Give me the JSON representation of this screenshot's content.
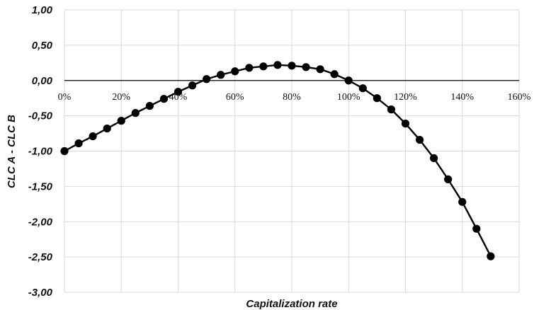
{
  "chart_data": {
    "type": "line",
    "xlabel": "Capitalization rate",
    "ylabel": "CLC A - CLC B",
    "xlim": [
      0,
      160
    ],
    "ylim": [
      -3,
      1
    ],
    "x_tick_values": [
      0,
      20,
      40,
      60,
      80,
      100,
      120,
      140,
      160
    ],
    "x_tick_labels": [
      "0%",
      "20%",
      "40%",
      "60%",
      "80%",
      "100%",
      "120%",
      "140%",
      "160%"
    ],
    "y_tick_values": [
      1,
      0.5,
      0,
      -0.5,
      -1,
      -1.5,
      -2,
      -2.5,
      -3
    ],
    "y_tick_labels": [
      "1,00",
      "0,50",
      "0,00",
      "-0,50",
      "-1,00",
      "-1,50",
      "-2,00",
      "-2,50",
      "-3,00"
    ],
    "grid": true,
    "legend": "none",
    "colors": {
      "line": "#000000",
      "marker": "#000000",
      "grid": "#d9d9d9",
      "zero_line": "#000000"
    },
    "series": [
      {
        "x": [
          0,
          5,
          10,
          15,
          20,
          25,
          30,
          35,
          40,
          45,
          50,
          55,
          60,
          65,
          70,
          75,
          80,
          85,
          90,
          95,
          100,
          105,
          110,
          115,
          120,
          125,
          130,
          135,
          140,
          145,
          150
        ],
        "y": [
          -1.0,
          -0.89,
          -0.79,
          -0.68,
          -0.57,
          -0.46,
          -0.36,
          -0.26,
          -0.16,
          -0.07,
          0.02,
          0.08,
          0.13,
          0.18,
          0.2,
          0.22,
          0.21,
          0.19,
          0.16,
          0.09,
          0.0,
          -0.11,
          -0.25,
          -0.41,
          -0.61,
          -0.84,
          -1.1,
          -1.4,
          -1.72,
          -2.1,
          -2.49
        ]
      }
    ]
  }
}
